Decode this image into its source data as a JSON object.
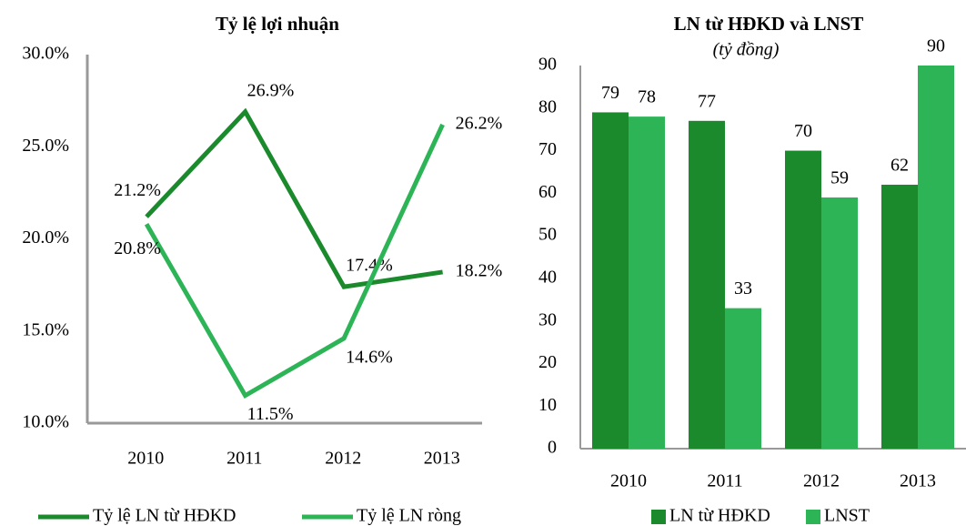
{
  "chart_data": [
    {
      "type": "line",
      "title": "Tỷ lệ lợi nhuận",
      "categories": [
        "2010",
        "2011",
        "2012",
        "2013"
      ],
      "series": [
        {
          "name": "Tỷ lệ LN từ HĐKD",
          "color": "#1a8a2c",
          "values": [
            21.2,
            26.9,
            17.4,
            18.2
          ],
          "value_labels": [
            "21.2%",
            "26.9%",
            "17.4%",
            "18.2%"
          ]
        },
        {
          "name": "Tỷ lệ LN ròng",
          "color": "#2cb457",
          "values": [
            20.8,
            11.5,
            14.6,
            26.2
          ],
          "value_labels": [
            "20.8%",
            "11.5%",
            "14.6%",
            "26.2%"
          ]
        }
      ],
      "ylim": [
        10,
        30
      ],
      "yticks": [
        {
          "value": 10,
          "label": "10.0%"
        },
        {
          "value": 15,
          "label": "15.0%"
        },
        {
          "value": 20,
          "label": "20.0%"
        },
        {
          "value": 25,
          "label": "25.0%"
        },
        {
          "value": 30,
          "label": "30.0%"
        }
      ],
      "legend": "bottom"
    },
    {
      "type": "bar",
      "title": "LN từ HĐKD và LNST",
      "subtitle": "(tỷ đồng)",
      "categories": [
        "2010",
        "2011",
        "2012",
        "2013"
      ],
      "series": [
        {
          "name": "LN từ HĐKD",
          "color": "#1a8a2c",
          "values": [
            79,
            77,
            70,
            62
          ]
        },
        {
          "name": "LNST",
          "color": "#2cb457",
          "values": [
            78,
            33,
            59,
            90
          ]
        }
      ],
      "ylim": [
        0,
        90
      ],
      "yticks": [
        0,
        10,
        20,
        30,
        40,
        50,
        60,
        70,
        80,
        90
      ],
      "legend": "bottom"
    }
  ]
}
